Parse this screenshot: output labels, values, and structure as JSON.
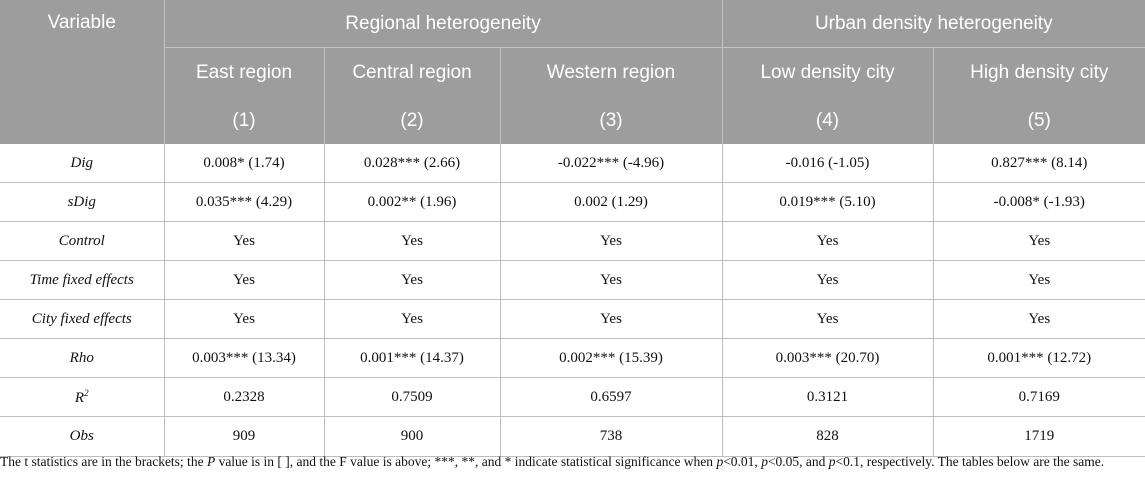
{
  "header": {
    "variable": "Variable",
    "groups": [
      "Regional heterogeneity",
      "Urban density heterogeneity"
    ],
    "columns": [
      "East region",
      "Central region",
      "Western region",
      "Low density city",
      "High density city"
    ],
    "numbers": [
      "(1)",
      "(2)",
      "(3)",
      "(4)",
      "(5)"
    ]
  },
  "rows": [
    {
      "label": "Dig",
      "cells": [
        "0.008* (1.74)",
        "0.028*** (2.66)",
        "-0.022*** (-4.96)",
        "-0.016 (-1.05)",
        "0.827*** (8.14)"
      ]
    },
    {
      "label": "sDig",
      "cells": [
        "0.035*** (4.29)",
        "0.002** (1.96)",
        "0.002 (1.29)",
        "0.019*** (5.10)",
        "-0.008* (-1.93)"
      ]
    },
    {
      "label": "Control",
      "cells": [
        "Yes",
        "Yes",
        "Yes",
        "Yes",
        "Yes"
      ]
    },
    {
      "label": "Time fixed effects",
      "cells": [
        "Yes",
        "Yes",
        "Yes",
        "Yes",
        "Yes"
      ]
    },
    {
      "label": "City fixed effects",
      "cells": [
        "Yes",
        "Yes",
        "Yes",
        "Yes",
        "Yes"
      ]
    },
    {
      "label": "Rho",
      "cells": [
        "0.003*** (13.34)",
        "0.001*** (14.37)",
        "0.002*** (15.39)",
        "0.003*** (20.70)",
        "0.001*** (12.72)"
      ]
    },
    {
      "label_base": "R",
      "label_sup": "2",
      "cells": [
        "0.2328",
        "0.7509",
        "0.6597",
        "0.3121",
        "0.7169"
      ]
    },
    {
      "label": "Obs",
      "cells": [
        "909",
        "900",
        "738",
        "828",
        "1719"
      ]
    }
  ],
  "note": {
    "t1": "The t statistics are in the brackets; the ",
    "P": "P",
    "t2": " value is in [ ], and the F value is above; ***, **, and * indicate statistical significance when ",
    "p1": "p",
    "t3": "<0.01, ",
    "p2": "p",
    "t4": "<0.05, and ",
    "p3": "p",
    "t5": "<0.1, respectively. The tables below are the same."
  }
}
